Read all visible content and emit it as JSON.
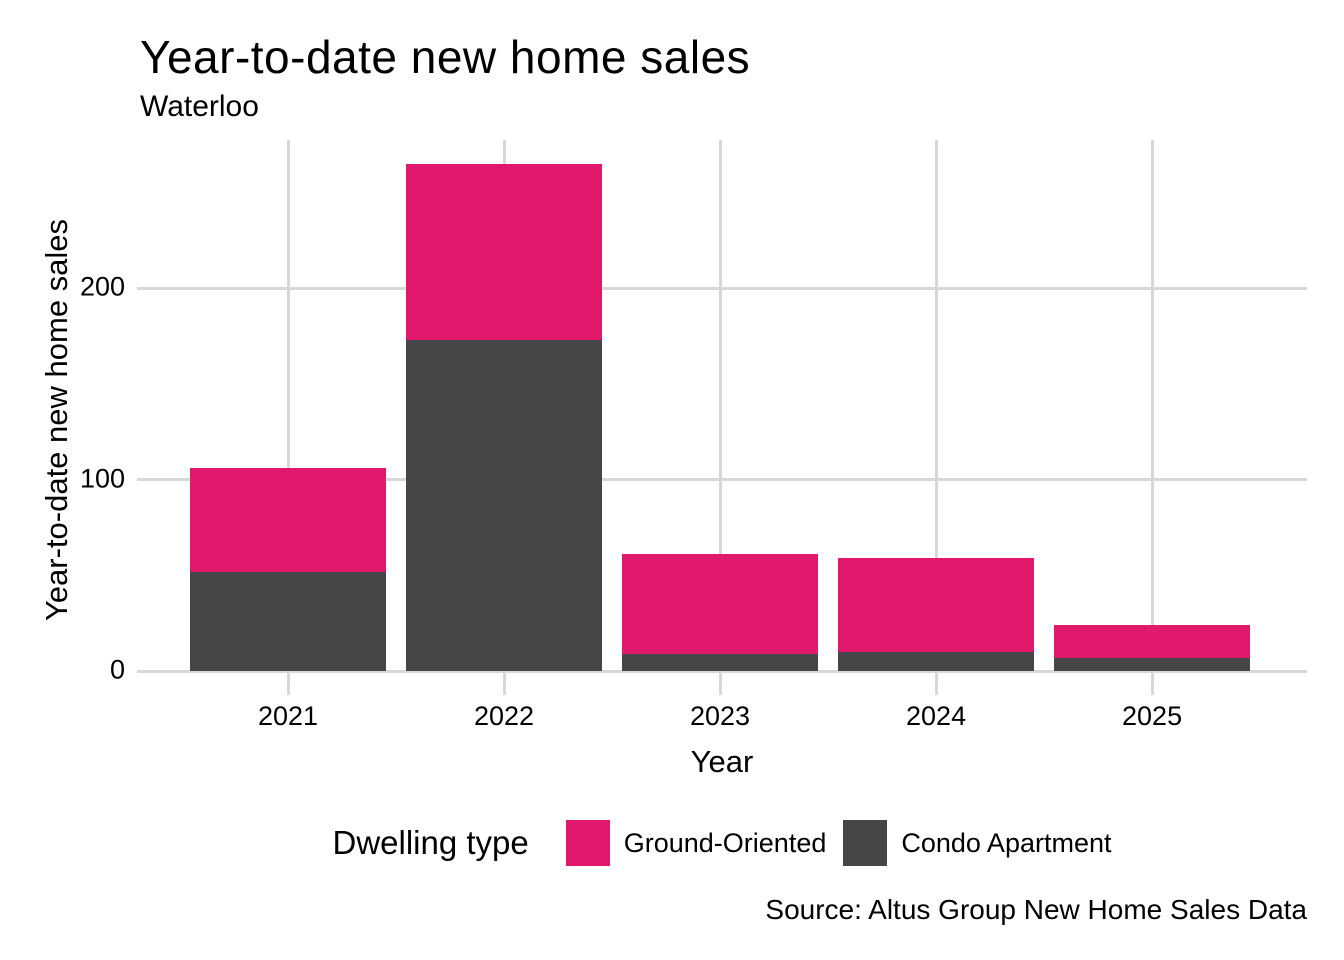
{
  "chart_data": {
    "type": "bar",
    "stacked": true,
    "title": "Year-to-date new home sales",
    "subtitle": "Waterloo",
    "xlabel": "Year",
    "ylabel": "Year-to-date new home sales",
    "categories": [
      "2021",
      "2022",
      "2023",
      "2024",
      "2025"
    ],
    "series": [
      {
        "name": "Condo Apartment",
        "color": "#484549",
        "values": [
          52,
          173,
          9,
          10,
          7
        ]
      },
      {
        "name": "Ground-Oriented",
        "color": "#E1196D",
        "values": [
          54,
          92,
          52,
          49,
          17
        ]
      }
    ],
    "y_ticks": [
      0,
      100,
      200
    ],
    "ylim": [
      0,
      277.5
    ],
    "grid": true,
    "legend_position": "bottom",
    "source": "Source: Altus Group New Home Sales Data"
  },
  "legend": {
    "title": "Dwelling type",
    "items": [
      {
        "label": "Ground-Oriented",
        "color": "#E1196D"
      },
      {
        "label": "Condo Apartment",
        "color": "#484549"
      }
    ]
  },
  "colors": {
    "ground_oriented": "#E1196D",
    "condo_apartment": "#484549",
    "gridline": "#D8D8D8",
    "text": "#000000",
    "background": "#FFFFFF"
  }
}
